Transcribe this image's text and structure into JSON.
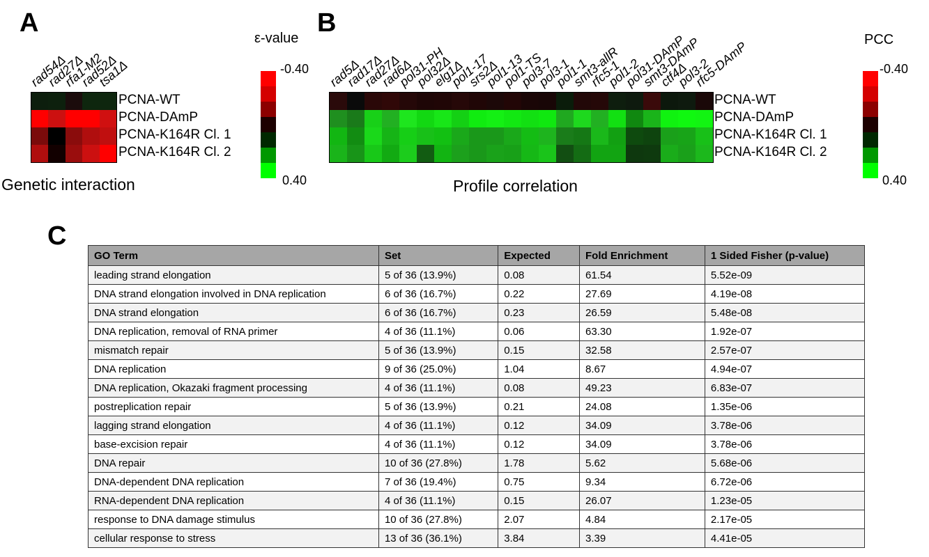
{
  "panels": {
    "a": "A",
    "b": "B",
    "c": "C"
  },
  "panel_a": {
    "caption": "Genetic interaction",
    "scale_title": "ε-value",
    "scale_top": "-0.40",
    "scale_bottom": "0.40",
    "columns": [
      "rad54Δ",
      "rad27Δ",
      "rfa1-M2",
      "rad52Δ",
      "tsa1Δ"
    ],
    "rows": [
      "PCNA-WT",
      "PCNA-DAmP",
      "PCNA-K164R Cl. 1",
      "PCNA-K164R Cl. 2"
    ],
    "colors": [
      [
        "#0d1e0d",
        "#0d200d",
        "#1b0c0c",
        "#0e260e",
        "#0e260e"
      ],
      [
        "#ff0000",
        "#cc1010",
        "#ff0000",
        "#ff0000",
        "#d01010"
      ],
      [
        "#7a0b0b",
        "#000000",
        "#8a0c0c",
        "#b00e0e",
        "#c00f0f"
      ],
      [
        "#b00e0e",
        "#120000",
        "#9a0d0d",
        "#cc1010",
        "#ff0000"
      ]
    ]
  },
  "panel_b": {
    "caption": "Profile correlation",
    "scale_title": "PCC",
    "scale_top": "-0.40",
    "scale_bottom": "0.40",
    "columns": [
      "rad5Δ",
      "rad17Δ",
      "rad27Δ",
      "rad6Δ",
      "pol31-PH",
      "pol32Δ",
      "elg1Δ",
      "pol1-17",
      "srs2Δ",
      "pol1-13",
      "pol1-TS",
      "pol3-7",
      "pol3-1",
      "pol1-1",
      "smt3-allR",
      "rfc5-1",
      "pol1-2",
      "pol31-DAmP",
      "smt3-DAmP",
      "ctf4Δ",
      "pol3-2",
      "rfc5-DAmP"
    ],
    "rows": [
      "PCNA-WT",
      "PCNA-DAmP",
      "PCNA-K164R Cl. 1",
      "PCNA-K164R Cl. 2"
    ],
    "colors": [
      [
        "#2a0a0a",
        "#0a0a0a",
        "#2a0808",
        "#300808",
        "#250808",
        "#1e0606",
        "#200606",
        "#260808",
        "#200606",
        "#1c0808",
        "#220606",
        "#1a0606",
        "#180606",
        "#0a1c0a",
        "#220808",
        "#250808",
        "#0e1e0e",
        "#0e1a0e",
        "#3a0a0a",
        "#0c180c",
        "#0e1a0e",
        "#1a0808"
      ],
      [
        "#1f8f1f",
        "#1a7a1a",
        "#18d018",
        "#22b022",
        "#1ee61e",
        "#12d812",
        "#18e618",
        "#14d014",
        "#10ec10",
        "#14f014",
        "#12e812",
        "#12e012",
        "#10e810",
        "#20a820",
        "#1ed81e",
        "#22b022",
        "#12e012",
        "#108810",
        "#1ab41a",
        "#10f210",
        "#10f810",
        "#12f412"
      ],
      [
        "#12b612",
        "#128c12",
        "#1ad81a",
        "#16b416",
        "#16ce16",
        "#18c018",
        "#12c012",
        "#1aa81a",
        "#1a981a",
        "#1a981a",
        "#1aa81a",
        "#14bc14",
        "#1eb41e",
        "#1a7c1a",
        "#157815",
        "#1ab81a",
        "#12a012",
        "#0e4a0e",
        "#0e440e",
        "#1aa01a",
        "#18a418",
        "#18c018"
      ],
      [
        "#1ab41a",
        "#189418",
        "#18c818",
        "#12aa12",
        "#1ccc1c",
        "#125c12",
        "#12b412",
        "#1ca01c",
        "#1a981a",
        "#1aa21a",
        "#18a018",
        "#16b816",
        "#1ac41a",
        "#124e12",
        "#146c14",
        "#12a412",
        "#12a412",
        "#0e380e",
        "#0e3a0e",
        "#1aac1a",
        "#1aa01a",
        "#1cb81c"
      ]
    ]
  },
  "colorbar_stops": [
    "#ff0000",
    "#d40000",
    "#8c0000",
    "#1c0000",
    "#002800",
    "#009800",
    "#00ff00"
  ],
  "table": {
    "headers": [
      "GO Term",
      "Set",
      "Expected",
      "Fold Enrichment",
      "1 Sided Fisher (p-value)"
    ],
    "rows": [
      [
        "leading strand elongation",
        "5 of 36 (13.9%)",
        "0.08",
        "61.54",
        "5.52e-09"
      ],
      [
        "DNA strand elongation involved in DNA replication",
        "6 of 36 (16.7%)",
        "0.22",
        "27.69",
        "4.19e-08"
      ],
      [
        "DNA strand elongation",
        "6 of 36 (16.7%)",
        "0.23",
        "26.59",
        "5.48e-08"
      ],
      [
        "DNA replication, removal of RNA primer",
        "4 of 36 (11.1%)",
        "0.06",
        "63.30",
        "1.92e-07"
      ],
      [
        "mismatch repair",
        "5 of 36 (13.9%)",
        "0.15",
        "32.58",
        "2.57e-07"
      ],
      [
        "DNA replication",
        "9 of 36 (25.0%)",
        "1.04",
        "8.67",
        "4.94e-07"
      ],
      [
        "DNA replication, Okazaki fragment processing",
        "4 of 36 (11.1%)",
        "0.08",
        "49.23",
        "6.83e-07"
      ],
      [
        "postreplication repair",
        "5 of 36 (13.9%)",
        "0.21",
        "24.08",
        "1.35e-06"
      ],
      [
        "lagging strand elongation",
        "4 of 36 (11.1%)",
        "0.12",
        "34.09",
        "3.78e-06"
      ],
      [
        "base-excision repair",
        "4 of 36 (11.1%)",
        "0.12",
        "34.09",
        "3.78e-06"
      ],
      [
        "DNA repair",
        "10 of 36 (27.8%)",
        "1.78",
        "5.62",
        "5.68e-06"
      ],
      [
        "DNA-dependent DNA replication",
        "7 of 36 (19.4%)",
        "0.75",
        "9.34",
        "6.72e-06"
      ],
      [
        "RNA-dependent DNA replication",
        "4 of 36 (11.1%)",
        "0.15",
        "26.07",
        "1.23e-05"
      ],
      [
        "response to DNA damage stimulus",
        "10 of 36 (27.8%)",
        "2.07",
        "4.84",
        "2.17e-05"
      ],
      [
        "cellular response to stress",
        "13 of 36 (36.1%)",
        "3.84",
        "3.39",
        "4.41e-05"
      ]
    ]
  }
}
